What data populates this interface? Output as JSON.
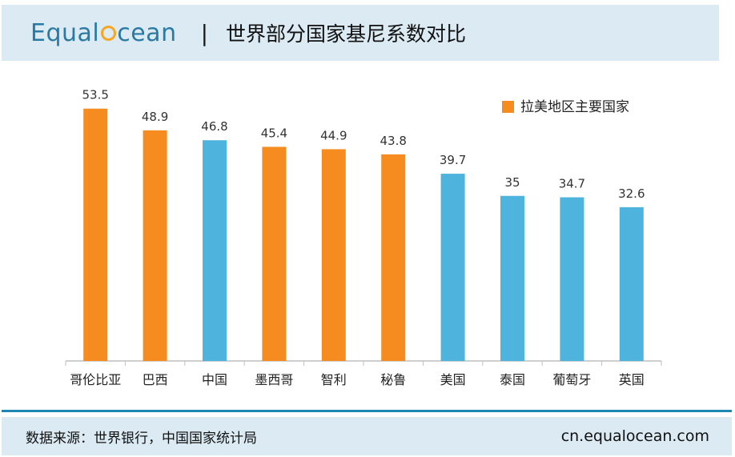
{
  "header": {
    "logo_left": "Equal",
    "logo_right": "cean",
    "separator": "|",
    "title": "世界部分国家基尼系数对比"
  },
  "footer": {
    "source": "数据来源：世界银行，中国国家统计局",
    "site": "cn.equalocean.com"
  },
  "colors": {
    "latam": "#f68c1f",
    "other": "#4fb4dd",
    "axis": "#bfbfbf",
    "label": "#333333"
  },
  "chart_data": {
    "type": "bar",
    "categories": [
      "哥伦比亚",
      "巴西",
      "中国",
      "墨西哥",
      "智利",
      "秘鲁",
      "美国",
      "泰国",
      "葡萄牙",
      "英国"
    ],
    "values": [
      53.5,
      48.9,
      46.8,
      45.4,
      44.9,
      43.8,
      39.7,
      35,
      34.7,
      32.6
    ],
    "value_labels": [
      "53.5",
      "48.9",
      "46.8",
      "45.4",
      "44.9",
      "43.8",
      "39.7",
      "35",
      "34.7",
      "32.6"
    ],
    "highlight": [
      true,
      true,
      false,
      true,
      true,
      true,
      false,
      false,
      false,
      false
    ],
    "legend": [
      "拉美地区主要国家"
    ],
    "legend_position": "top-right",
    "ylim": [
      0,
      56
    ],
    "grid": false
  }
}
